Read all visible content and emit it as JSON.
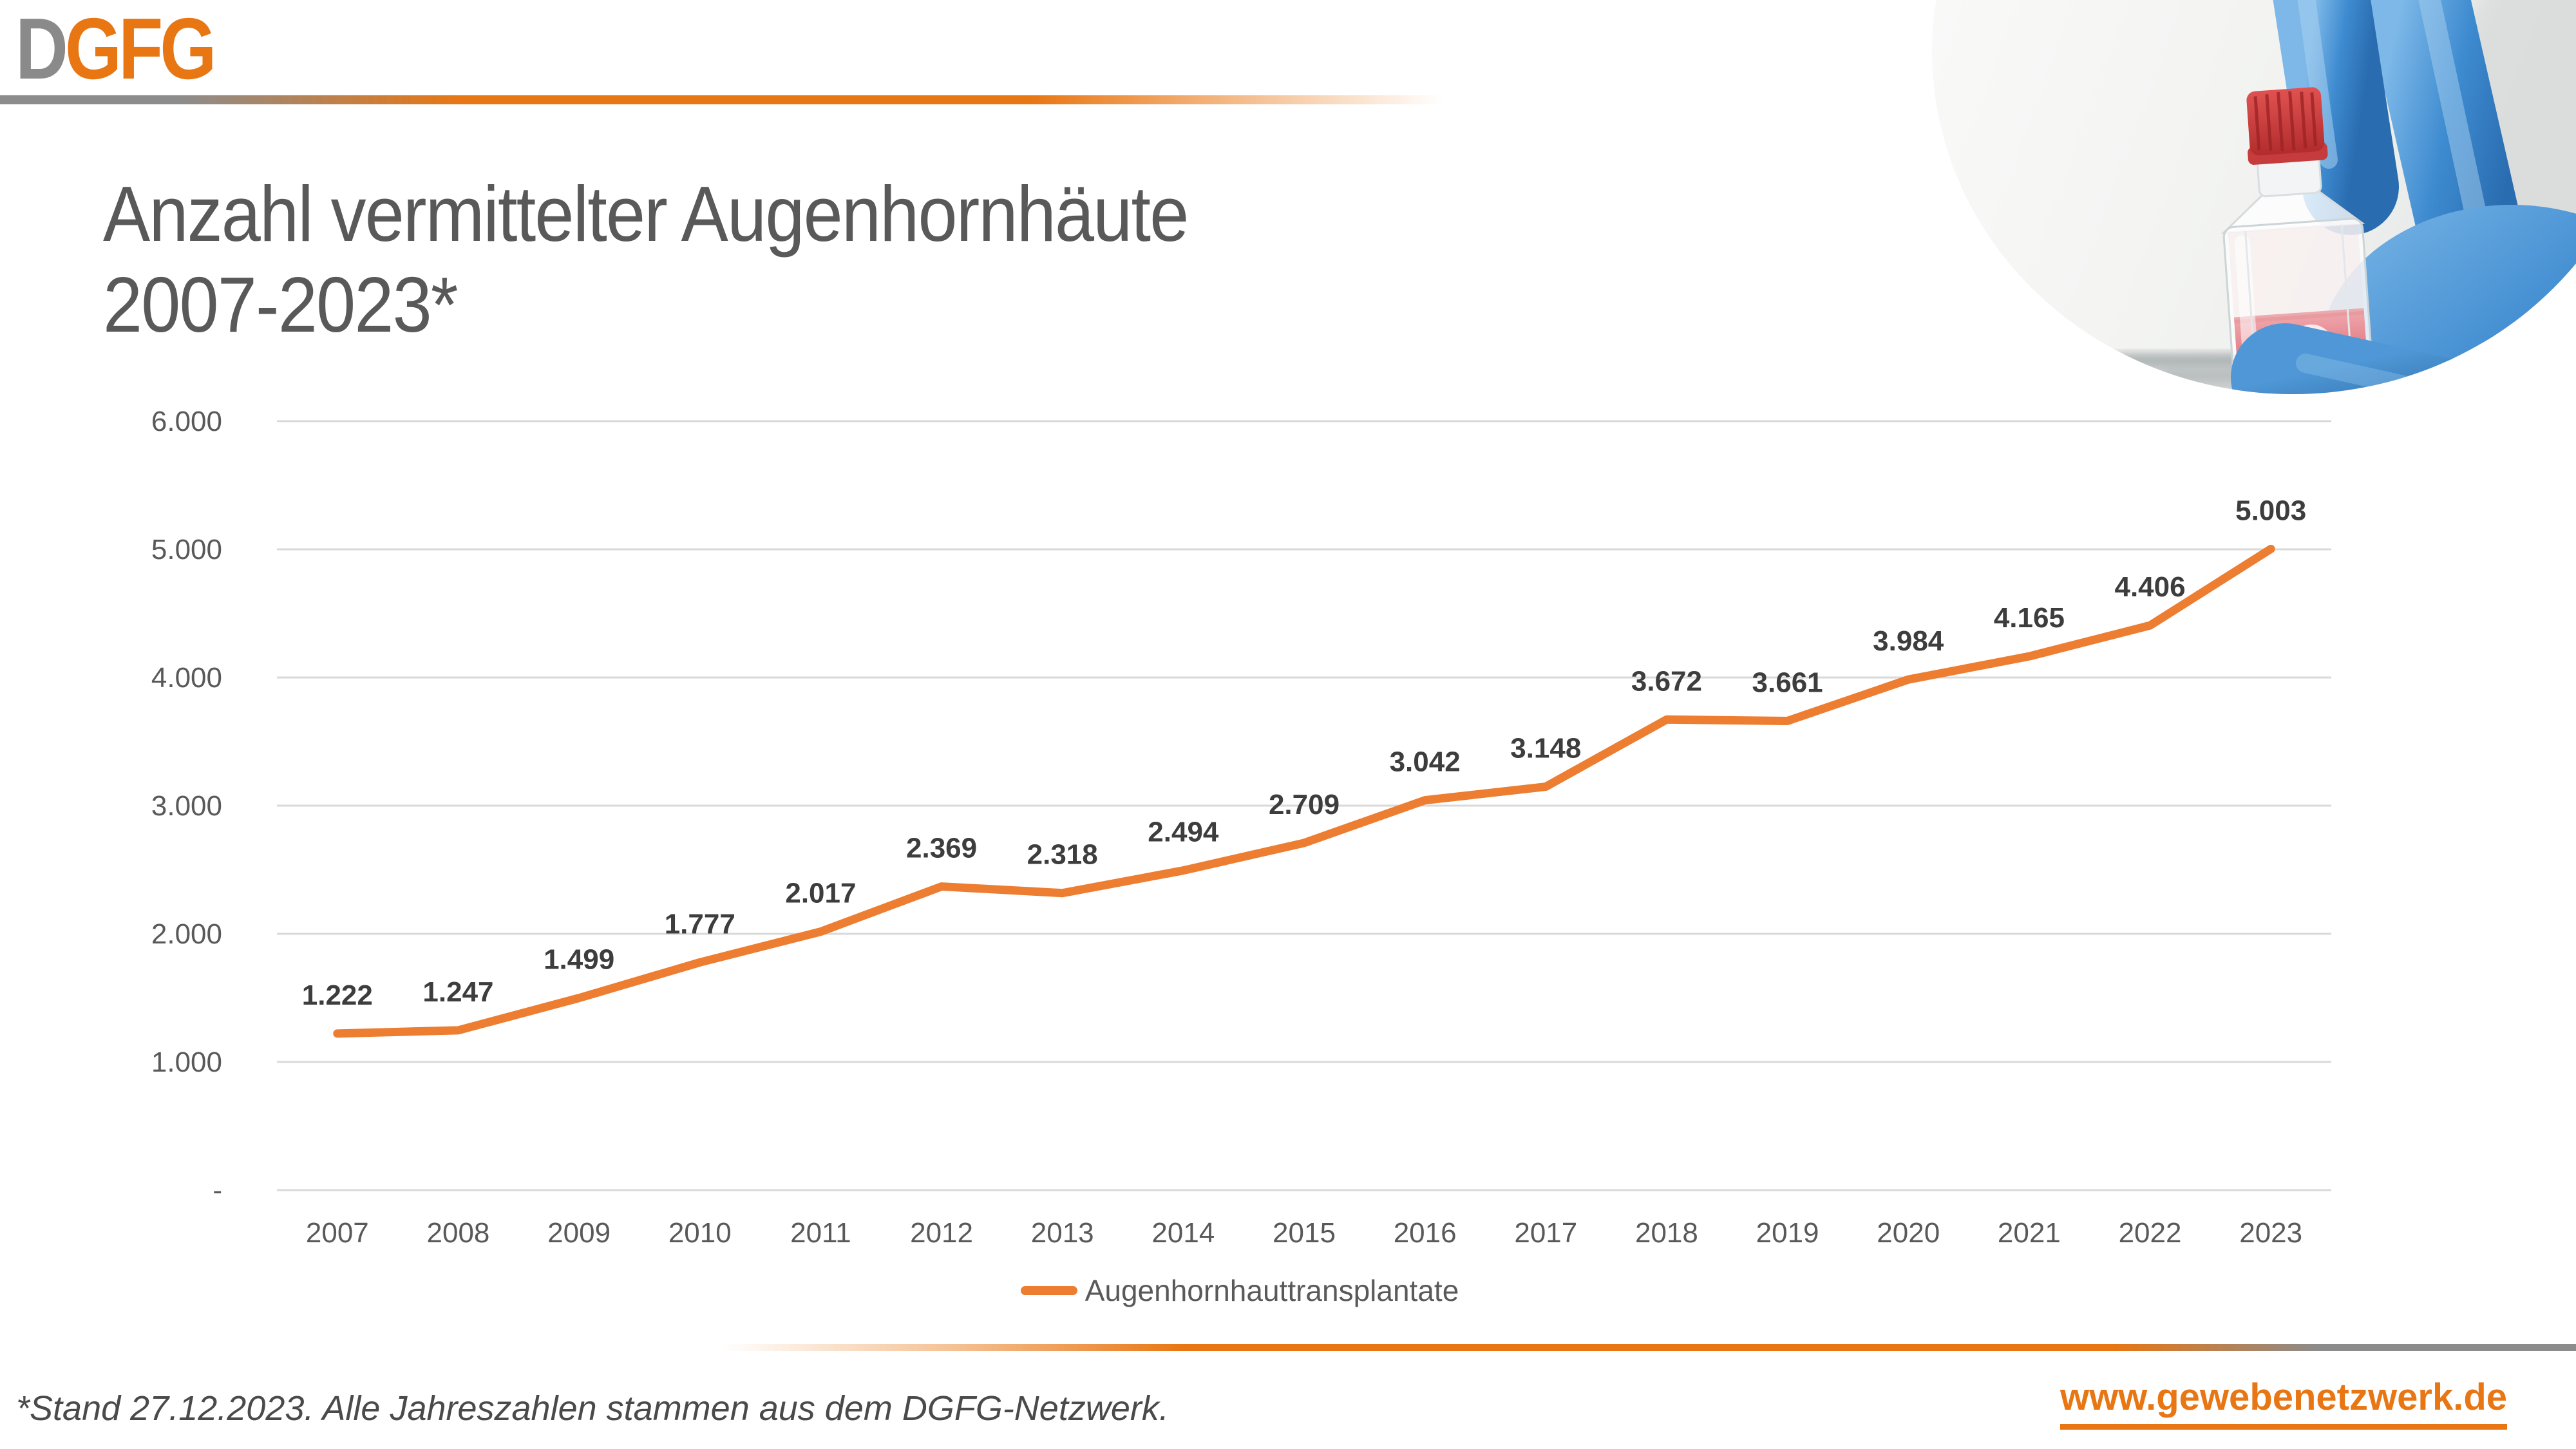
{
  "brand": {
    "logo_d": "D",
    "logo_rest": "GFG"
  },
  "slide": {
    "title_line1": "Anzahl vermittelter Augenhornhäute",
    "title_line2": "2007-2023*"
  },
  "chart_data": {
    "type": "line",
    "title": "Anzahl vermittelter Augenhornhäute 2007-2023*",
    "categories": [
      "2007",
      "2008",
      "2009",
      "2010",
      "2011",
      "2012",
      "2013",
      "2014",
      "2015",
      "2016",
      "2017",
      "2018",
      "2019",
      "2020",
      "2021",
      "2022",
      "2023"
    ],
    "series": [
      {
        "name": "Augenhornhauttransplantate",
        "color": "#ED7D31",
        "values": [
          1222,
          1247,
          1499,
          1777,
          2017,
          2369,
          2318,
          2494,
          2709,
          3042,
          3148,
          3672,
          3661,
          3984,
          4165,
          4406,
          5003
        ],
        "labels": [
          "1.222",
          "1.247",
          "1.499",
          "1.777",
          "2.017",
          "2.369",
          "2.318",
          "2.494",
          "2.709",
          "3.042",
          "3.148",
          "3.672",
          "3.661",
          "3.984",
          "4.165",
          "4.406",
          "5.003"
        ]
      }
    ],
    "yticks": [
      {
        "value": 0,
        "label": "-"
      },
      {
        "value": 1000,
        "label": "1.000"
      },
      {
        "value": 2000,
        "label": "2.000"
      },
      {
        "value": 3000,
        "label": "3.000"
      },
      {
        "value": 4000,
        "label": "4.000"
      },
      {
        "value": 5000,
        "label": "5.000"
      },
      {
        "value": 6000,
        "label": "6.000"
      }
    ],
    "ylim": [
      0,
      6000
    ],
    "xlabel": "",
    "ylabel": "",
    "grid": "horizontal",
    "legend_position": "bottom-center"
  },
  "legend": {
    "label": "Augenhornhauttransplantate"
  },
  "footer": {
    "note": "*Stand 27.12.2023. Alle Jahreszahlen stammen aus dem DGFG-Netzwerk.",
    "url": "www.gewebenetzwerk.de"
  },
  "photo": {
    "description": "Hand in blue nitrile glove holding a cell culture flask with red medium"
  },
  "colors": {
    "accent_orange": "#E87613",
    "chart_line": "#ED7D31",
    "divider_gray": "#8C8C8C",
    "gridline": "#D9D9D9",
    "axis_text": "#595959",
    "data_label": "#3D3D3D",
    "title_text": "#595959",
    "logo_gray": "#8A8A8A"
  }
}
